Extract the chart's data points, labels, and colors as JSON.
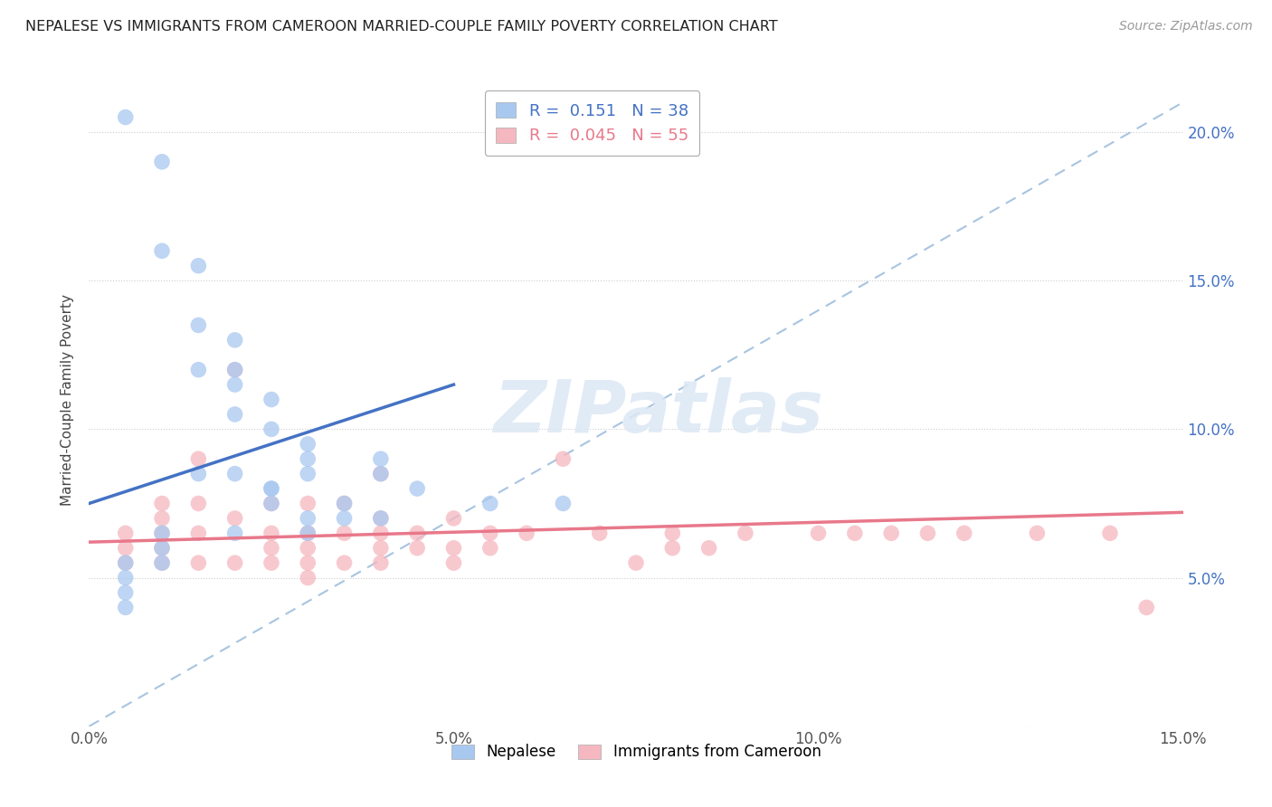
{
  "title": "NEPALESE VS IMMIGRANTS FROM CAMEROON MARRIED-COUPLE FAMILY POVERTY CORRELATION CHART",
  "source": "Source: ZipAtlas.com",
  "ylabel": "Married-Couple Family Poverty",
  "xlabel": "",
  "xlim": [
    0.0,
    0.15
  ],
  "ylim": [
    0.0,
    0.22
  ],
  "xticks": [
    0.0,
    0.05,
    0.1,
    0.15
  ],
  "xtick_labels": [
    "0.0%",
    "5.0%",
    "10.0%",
    "15.0%"
  ],
  "yticks": [
    0.0,
    0.05,
    0.1,
    0.15,
    0.2
  ],
  "ytick_labels_right": [
    "",
    "5.0%",
    "10.0%",
    "15.0%",
    "20.0%"
  ],
  "nepalese_R": 0.151,
  "nepalese_N": 38,
  "cameroon_R": 0.045,
  "cameroon_N": 55,
  "nepalese_color": "#A8C8F0",
  "cameroon_color": "#F5B8C0",
  "nepalese_line_color": "#4472C4",
  "cameroon_line_color": "#E8788A",
  "ref_line_color": "#A8C4E0",
  "background_color": "#FFFFFF",
  "watermark": "ZIPatlas",
  "nepalese_x": [
    0.005,
    0.01,
    0.01,
    0.015,
    0.015,
    0.015,
    0.015,
    0.02,
    0.02,
    0.02,
    0.02,
    0.02,
    0.025,
    0.025,
    0.025,
    0.025,
    0.025,
    0.03,
    0.03,
    0.03,
    0.03,
    0.035,
    0.035,
    0.04,
    0.04,
    0.04,
    0.045,
    0.005,
    0.005,
    0.005,
    0.005,
    0.01,
    0.01,
    0.01,
    0.02,
    0.03,
    0.055,
    0.065
  ],
  "nepalese_y": [
    0.205,
    0.19,
    0.16,
    0.155,
    0.135,
    0.12,
    0.085,
    0.13,
    0.12,
    0.115,
    0.105,
    0.085,
    0.11,
    0.1,
    0.08,
    0.08,
    0.075,
    0.095,
    0.09,
    0.085,
    0.07,
    0.075,
    0.07,
    0.09,
    0.085,
    0.07,
    0.08,
    0.055,
    0.05,
    0.045,
    0.04,
    0.065,
    0.06,
    0.055,
    0.065,
    0.065,
    0.075,
    0.075
  ],
  "cameroon_x": [
    0.005,
    0.005,
    0.005,
    0.01,
    0.01,
    0.01,
    0.01,
    0.01,
    0.015,
    0.015,
    0.015,
    0.015,
    0.02,
    0.02,
    0.02,
    0.025,
    0.025,
    0.025,
    0.025,
    0.03,
    0.03,
    0.03,
    0.03,
    0.03,
    0.035,
    0.035,
    0.035,
    0.04,
    0.04,
    0.04,
    0.04,
    0.04,
    0.045,
    0.045,
    0.05,
    0.05,
    0.05,
    0.055,
    0.055,
    0.06,
    0.065,
    0.07,
    0.075,
    0.08,
    0.08,
    0.085,
    0.09,
    0.1,
    0.105,
    0.11,
    0.115,
    0.12,
    0.13,
    0.14,
    0.145
  ],
  "cameroon_y": [
    0.065,
    0.06,
    0.055,
    0.075,
    0.07,
    0.065,
    0.06,
    0.055,
    0.09,
    0.075,
    0.065,
    0.055,
    0.12,
    0.07,
    0.055,
    0.075,
    0.065,
    0.06,
    0.055,
    0.075,
    0.065,
    0.06,
    0.055,
    0.05,
    0.075,
    0.065,
    0.055,
    0.085,
    0.07,
    0.065,
    0.06,
    0.055,
    0.065,
    0.06,
    0.07,
    0.06,
    0.055,
    0.065,
    0.06,
    0.065,
    0.09,
    0.065,
    0.055,
    0.065,
    0.06,
    0.06,
    0.065,
    0.065,
    0.065,
    0.065,
    0.065,
    0.065,
    0.065,
    0.065,
    0.04
  ],
  "nep_line_x0": 0.0,
  "nep_line_y0": 0.075,
  "nep_line_x1": 0.05,
  "nep_line_y1": 0.115,
  "cam_line_x0": 0.0,
  "cam_line_y0": 0.062,
  "cam_line_x1": 0.15,
  "cam_line_y1": 0.072
}
